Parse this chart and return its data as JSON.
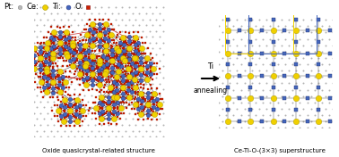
{
  "fig_width": 3.78,
  "fig_height": 1.76,
  "dpi": 100,
  "bg_color": "#c8c8c8",
  "pt_color": "#b0b0b0",
  "ce_color": "#f0d000",
  "ti_color": "#4466bb",
  "o_color": "#cc2200",
  "title_left": "Oxide quasicrystal-related structure",
  "title_right": "Ce-Ti-O-(3×3) superstructure",
  "arrow_label_top": "Ti",
  "arrow_label_bottom": "annealing",
  "label_pt": "Pt:",
  "label_ce": "Ce:",
  "label_ti": "Ti:",
  "label_o": "O:",
  "legend_fontsize": 6,
  "title_fontsize": 5.0,
  "arrow_fontsize": 6
}
